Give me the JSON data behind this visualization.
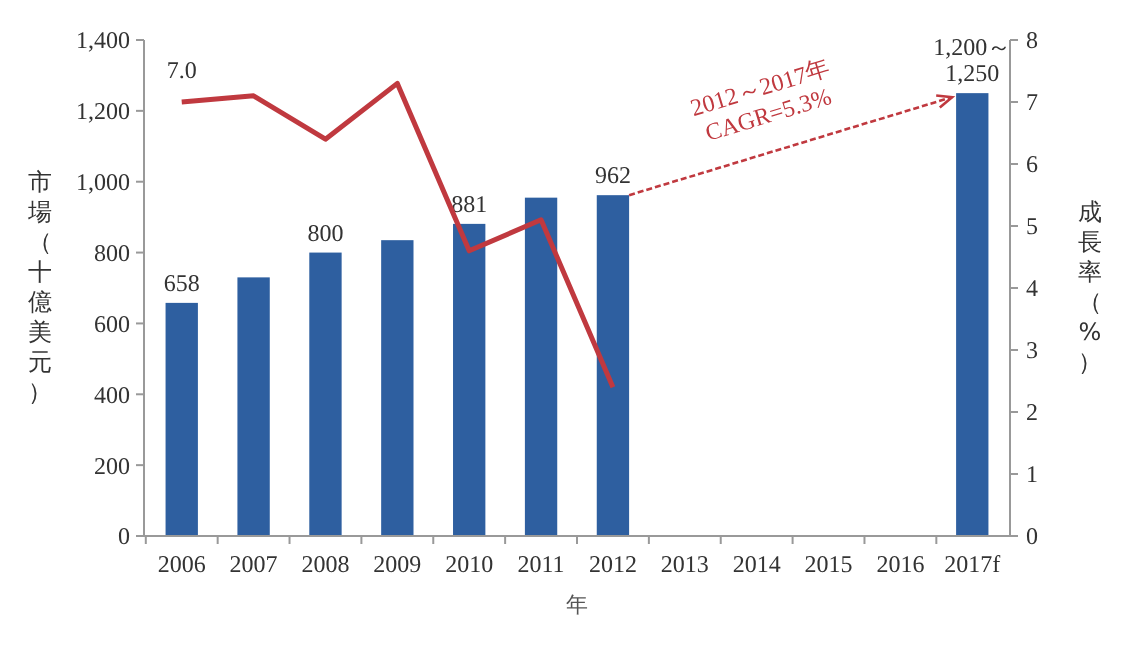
{
  "chart_data": {
    "type": "bar",
    "xlabel": "年",
    "ylabel": "市場（十億美元）",
    "y2label": "成長率（%）",
    "categories": [
      "2006",
      "2007",
      "2008",
      "2009",
      "2010",
      "2011",
      "2012",
      "2013",
      "2014",
      "2015",
      "2016",
      "2017f"
    ],
    "series": [
      {
        "color": "#2e5fa0",
        "values": [
          658,
          730,
          800,
          835,
          881,
          955,
          962,
          null,
          null,
          null,
          null,
          1250
        ],
        "value_labels": [
          "658",
          null,
          "800",
          null,
          "881",
          null,
          "962",
          null,
          null,
          null,
          null,
          "1,200～\n1,250"
        ]
      },
      {
        "type": "line",
        "axis": "y2",
        "color": "#c0393f",
        "values": [
          7.0,
          7.1,
          6.4,
          7.3,
          4.6,
          5.1,
          2.4,
          null,
          null,
          null,
          null,
          null
        ],
        "value_labels": [
          "7.0",
          null,
          null,
          null,
          null,
          null,
          null,
          null,
          null,
          null,
          null,
          null
        ]
      }
    ],
    "ylim": [
      0,
      1400
    ],
    "yticks": [
      0,
      {
        "value": 200,
        "label": "200"
      },
      {
        "value": 400,
        "label": "400"
      },
      {
        "value": 600,
        "label": "600"
      },
      {
        "value": 800,
        "label": "800"
      },
      {
        "value": 1000,
        "label": "1,000"
      },
      {
        "value": 1200,
        "label": "1,200"
      },
      {
        "value": 1400,
        "label": "1,400"
      }
    ],
    "y2lim": [
      0,
      8
    ],
    "y2ticks": [
      0,
      1,
      2,
      3,
      4,
      5,
      6,
      7,
      8
    ],
    "annotations": [
      "2012～2017年\nCAGR=5.3%"
    ],
    "grid": false,
    "marker": "none",
    "line_style": "solid"
  }
}
